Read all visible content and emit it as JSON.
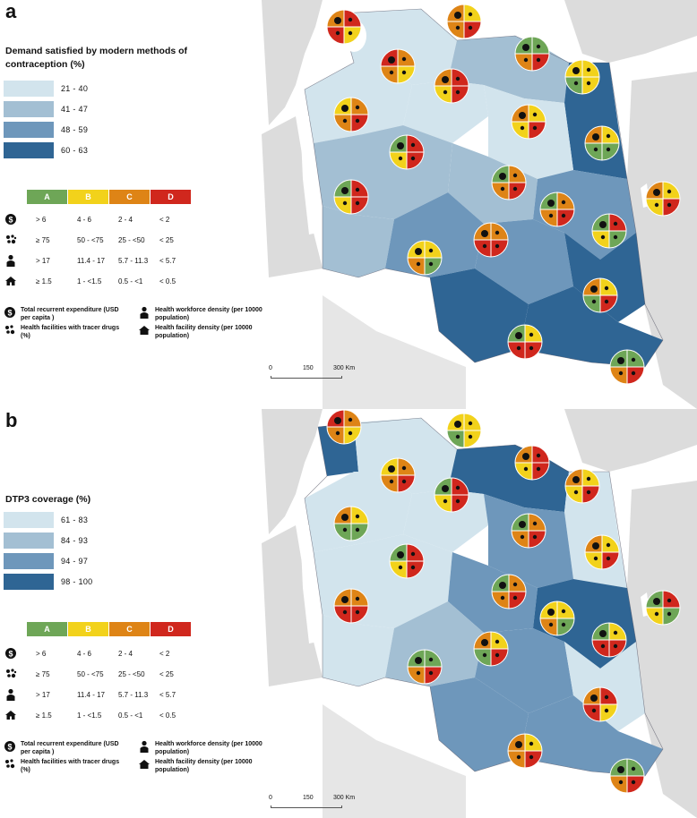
{
  "panels": [
    {
      "letter": "a",
      "legend_title": "Demand satisfied by modern methods of contraception  (%)",
      "classes": [
        {
          "label": "21 - 40",
          "color": "#d2e4ed"
        },
        {
          "label": "41 - 47",
          "color": "#a3bfd3"
        },
        {
          "label": "48 - 59",
          "color": "#6e97bb"
        },
        {
          "label": "60 - 63",
          "color": "#2f6594"
        }
      ]
    },
    {
      "letter": "b",
      "legend_title": "DTP3 coverage  (%)",
      "classes": [
        {
          "label": "61 - 83",
          "color": "#d2e4ed"
        },
        {
          "label": "84 - 93",
          "color": "#a3bfd3"
        },
        {
          "label": "94 - 97",
          "color": "#6e97bb"
        },
        {
          "label": "98 - 100",
          "color": "#2f6594"
        }
      ]
    }
  ],
  "grades": [
    {
      "label": "A",
      "color": "#6ea657"
    },
    {
      "label": "B",
      "color": "#f2d21b"
    },
    {
      "label": "C",
      "color": "#de8416"
    },
    {
      "label": "D",
      "color": "#d0271d"
    }
  ],
  "indicators": [
    {
      "icon": "dollar-icon",
      "A": "> 6",
      "B": "4 - 6",
      "C": "2 - 4",
      "D": "< 2"
    },
    {
      "icon": "drugs-icon",
      "A": "≥ 75",
      "B": "50 - <75",
      "C": "25 - <50",
      "D": "< 25"
    },
    {
      "icon": "worker-icon",
      "A": "> 17",
      "B": "11.4 - 17",
      "C": "5.7 - 11.3",
      "D": "< 5.7"
    },
    {
      "icon": "facility-icon",
      "A": "≥ 1.5",
      "B": "1 - <1.5",
      "C": "0.5 - <1",
      "D": "< 0.5"
    }
  ],
  "key": {
    "expenditure": "Total recurrent expenditure (USD per capita )",
    "workforce": "Health workforce density (per 10000 population)",
    "drugs": "Health facilities with tracer drugs (%)",
    "facility": "Health facility density (per 10000 population)"
  },
  "scale": {
    "t0": "0",
    "t1": "150",
    "t2": "300 Km"
  }
}
